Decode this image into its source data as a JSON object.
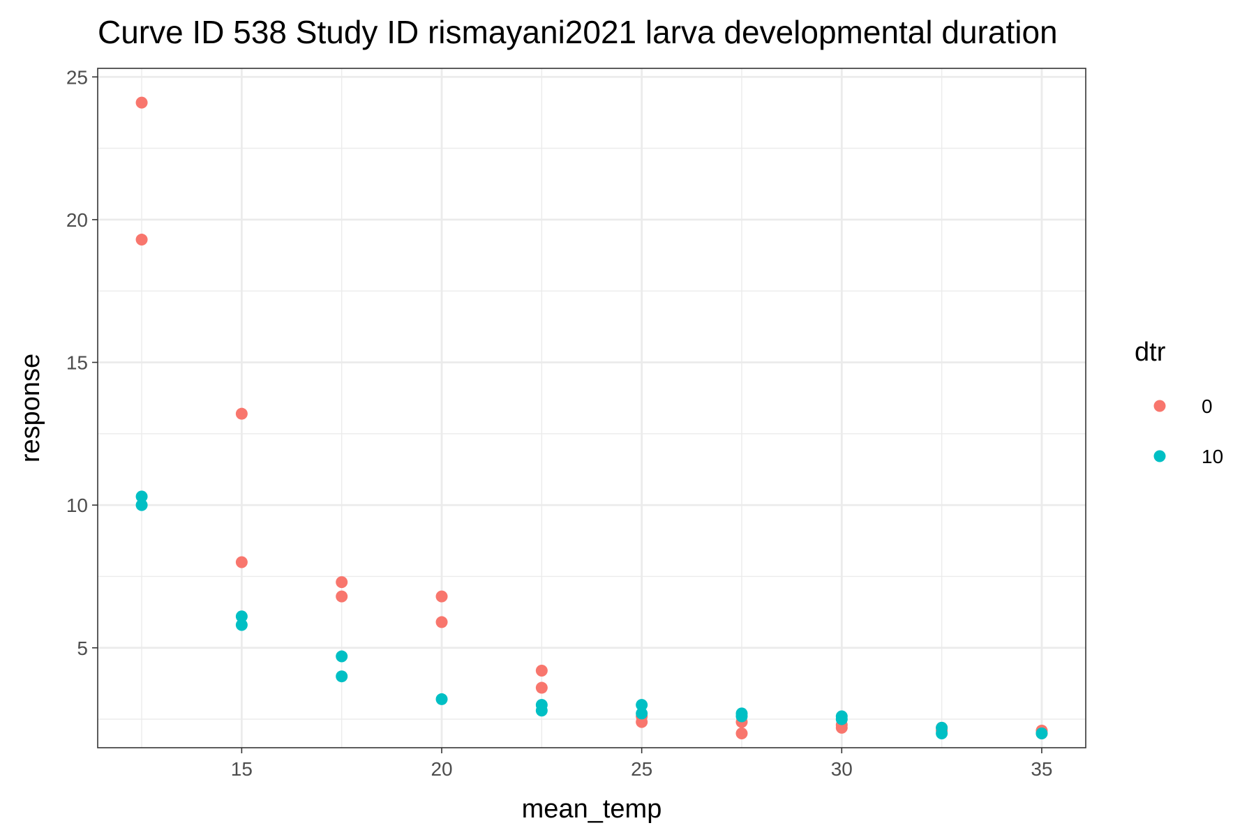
{
  "chart_data": {
    "type": "scatter",
    "title": "Curve ID 538 Study ID rismayani2021 larva developmental duration",
    "xlabel": "mean_temp",
    "ylabel": "response",
    "xlim": [
      11.4,
      36.1
    ],
    "ylim": [
      1.5,
      25.3
    ],
    "x_ticks": [
      15,
      20,
      25,
      30,
      35
    ],
    "y_ticks": [
      5,
      10,
      15,
      20,
      25
    ],
    "x_tick_labels": [
      "15",
      "20",
      "25",
      "30",
      "35"
    ],
    "y_tick_labels": [
      "5",
      "10",
      "15",
      "20",
      "25"
    ],
    "grid": true,
    "legend": {
      "title": "dtr",
      "placement": "right"
    },
    "series": [
      {
        "name": "0",
        "color": "#F8766D",
        "points": [
          {
            "x": 12.5,
            "y": 24.1
          },
          {
            "x": 12.5,
            "y": 19.3
          },
          {
            "x": 15,
            "y": 13.2
          },
          {
            "x": 15,
            "y": 8.0
          },
          {
            "x": 17.5,
            "y": 7.3
          },
          {
            "x": 17.5,
            "y": 6.8
          },
          {
            "x": 20,
            "y": 6.8
          },
          {
            "x": 20,
            "y": 5.9
          },
          {
            "x": 22.5,
            "y": 4.2
          },
          {
            "x": 22.5,
            "y": 3.6
          },
          {
            "x": 25,
            "y": 2.6
          },
          {
            "x": 25,
            "y": 2.4
          },
          {
            "x": 27.5,
            "y": 2.4
          },
          {
            "x": 27.5,
            "y": 2.0
          },
          {
            "x": 30,
            "y": 2.3
          },
          {
            "x": 30,
            "y": 2.2
          },
          {
            "x": 32.5,
            "y": 2.2
          },
          {
            "x": 32.5,
            "y": 2.1
          },
          {
            "x": 35,
            "y": 2.1
          },
          {
            "x": 35,
            "y": 2.0
          }
        ]
      },
      {
        "name": "10",
        "color": "#00BFC4",
        "points": [
          {
            "x": 12.5,
            "y": 10.3
          },
          {
            "x": 12.5,
            "y": 10.0
          },
          {
            "x": 15,
            "y": 6.1
          },
          {
            "x": 15,
            "y": 5.8
          },
          {
            "x": 17.5,
            "y": 4.7
          },
          {
            "x": 17.5,
            "y": 4.0
          },
          {
            "x": 20,
            "y": 3.2
          },
          {
            "x": 22.5,
            "y": 3.0
          },
          {
            "x": 22.5,
            "y": 2.8
          },
          {
            "x": 25,
            "y": 3.0
          },
          {
            "x": 25,
            "y": 2.7
          },
          {
            "x": 27.5,
            "y": 2.7
          },
          {
            "x": 27.5,
            "y": 2.6
          },
          {
            "x": 30,
            "y": 2.6
          },
          {
            "x": 30,
            "y": 2.5
          },
          {
            "x": 32.5,
            "y": 2.2
          },
          {
            "x": 32.5,
            "y": 2.0
          },
          {
            "x": 35,
            "y": 2.0
          }
        ]
      }
    ]
  }
}
